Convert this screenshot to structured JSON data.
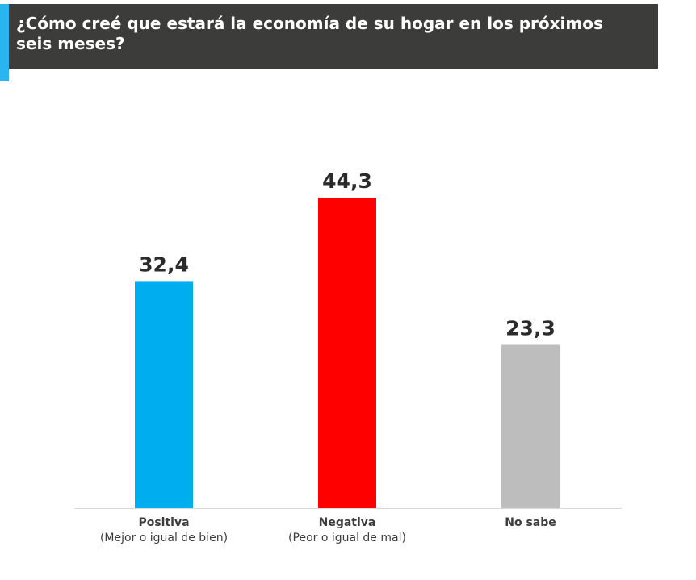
{
  "chart_data": {
    "type": "bar",
    "title": "¿Cómo creé que estará la economía de su hogar en los próximos seis meses?",
    "categories": [
      "Positiva",
      "Negativa",
      "No sabe"
    ],
    "category_sublabels": [
      "(Mejor o igual de bien)",
      "(Peor o igual de mal)",
      ""
    ],
    "values": [
      32.4,
      44.3,
      23.3
    ],
    "value_labels": [
      "32,4",
      "44,3",
      "23,3"
    ],
    "colors": [
      "#00aeef",
      "#ff0000",
      "#bdbdbd"
    ],
    "ylim": [
      0,
      50
    ],
    "grid": false,
    "legend": "none",
    "xlabel": "",
    "ylabel": ""
  }
}
